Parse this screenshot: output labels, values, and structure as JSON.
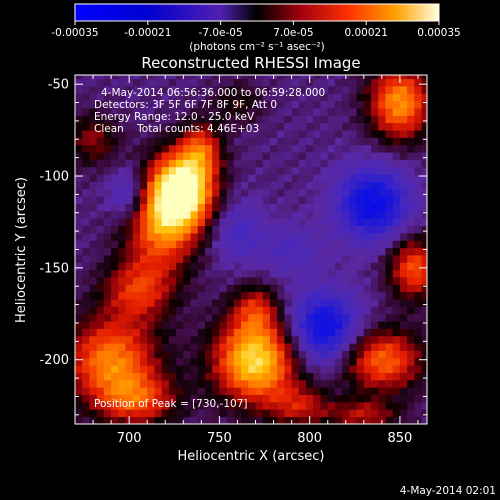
{
  "chart_data": {
    "type": "heatmap",
    "title": "Reconstructed RHESSI Image",
    "xlabel": "Heliocentric X (arcsec)",
    "ylabel": "Heliocentric Y (arcsec)",
    "xlim": [
      670,
      865
    ],
    "ylim": [
      -235,
      -45
    ],
    "xticks": [
      700,
      750,
      800,
      850
    ],
    "yticks": [
      -50,
      -100,
      -150,
      -200
    ],
    "colorbar": {
      "range": [
        -0.00035,
        0.00035
      ],
      "tick_labels": [
        "-0.00035",
        "-0.00021",
        "-7.0e-05",
        "7.0e-05",
        "0.00021",
        "0.00035"
      ],
      "unit_label": "(photons cm⁻² s⁻¹ asec⁻²)"
    },
    "annotations": [
      "4-May-2014 06:56:36.000 to 06:59:28.000",
      "Detectors: 3F 5F 6F 7F 8F 9F, Att 0",
      "Energy Range: 12.0 - 25.0 keV",
      "Clean    Total counts: 4.46E+03"
    ],
    "peak_label": "Position of Peak = [730,-107]",
    "footer_date": "4-May-2014 02:01",
    "blobs": [
      {
        "x": 730,
        "y": -107,
        "sx": 12,
        "sy": 14,
        "amp": 1.0
      },
      {
        "x": 718,
        "y": -125,
        "sx": 14,
        "sy": 18,
        "amp": 0.65
      },
      {
        "x": 740,
        "y": -85,
        "sx": 8,
        "sy": 10,
        "amp": 0.45
      },
      {
        "x": 705,
        "y": -162,
        "sx": 14,
        "sy": 12,
        "amp": 0.45
      },
      {
        "x": 690,
        "y": -200,
        "sx": 18,
        "sy": 16,
        "amp": 0.65
      },
      {
        "x": 705,
        "y": -222,
        "sx": 16,
        "sy": 10,
        "amp": 0.45
      },
      {
        "x": 770,
        "y": -200,
        "sx": 16,
        "sy": 16,
        "amp": 0.9
      },
      {
        "x": 770,
        "y": -172,
        "sx": 9,
        "sy": 9,
        "amp": 0.35
      },
      {
        "x": 795,
        "y": -225,
        "sx": 12,
        "sy": 8,
        "amp": 0.35
      },
      {
        "x": 850,
        "y": -60,
        "sx": 12,
        "sy": 14,
        "amp": 0.7
      },
      {
        "x": 858,
        "y": -150,
        "sx": 10,
        "sy": 12,
        "amp": 0.55
      },
      {
        "x": 840,
        "y": -200,
        "sx": 16,
        "sy": 12,
        "amp": 0.6
      },
      {
        "x": 830,
        "y": -230,
        "sx": 14,
        "sy": 6,
        "amp": 0.35
      },
      {
        "x": 680,
        "y": -80,
        "sx": 10,
        "sy": 10,
        "amp": 0.3
      },
      {
        "x": 760,
        "y": -60,
        "sx": 10,
        "sy": 8,
        "amp": 0.2
      },
      {
        "x": 835,
        "y": -115,
        "sx": 14,
        "sy": 14,
        "amp": -0.6
      },
      {
        "x": 808,
        "y": -183,
        "sx": 14,
        "sy": 14,
        "amp": -0.6
      },
      {
        "x": 700,
        "y": -110,
        "sx": 8,
        "sy": 10,
        "amp": -0.35
      },
      {
        "x": 760,
        "y": -130,
        "sx": 10,
        "sy": 12,
        "amp": -0.25
      },
      {
        "x": 790,
        "y": -140,
        "sx": 12,
        "sy": 10,
        "amp": -0.2
      }
    ]
  }
}
